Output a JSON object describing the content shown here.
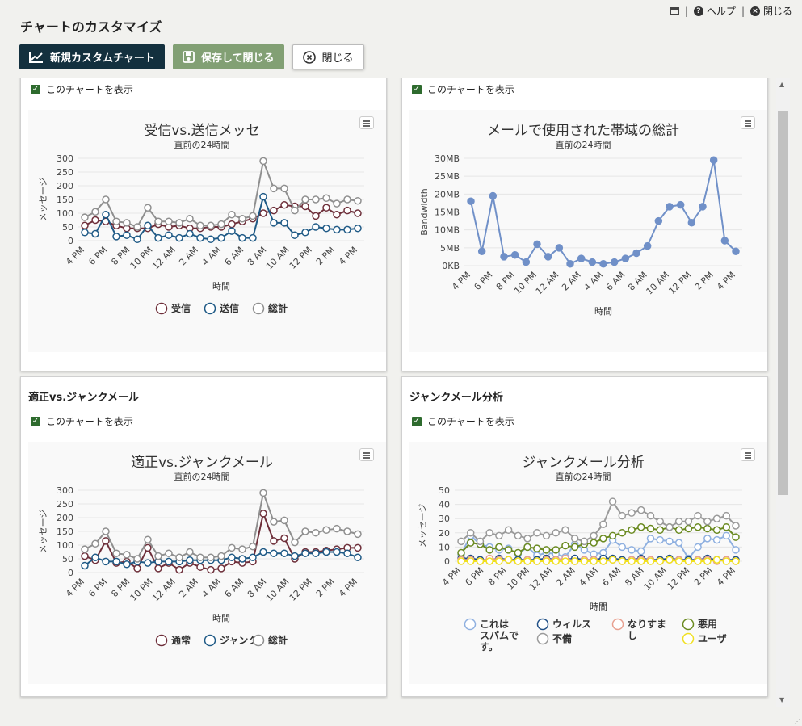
{
  "page": {
    "title": "チャートのカスタマイズ"
  },
  "top_links": {
    "help": "ヘルプ",
    "close": "閉じる",
    "sep": "|"
  },
  "toolbar": {
    "new_chart": "新規カスタムチャート",
    "save_close": "保存して閉じる",
    "close": "閉じる"
  },
  "x_ticks": [
    "4 PM",
    "6 PM",
    "8 PM",
    "10 PM",
    "12 AM",
    "2 AM",
    "4 AM",
    "6 AM",
    "8 AM",
    "10 AM",
    "12 PM",
    "2 PM",
    "4 PM"
  ],
  "charts": [
    {
      "card_title": "",
      "show_label": "このチャートを表示",
      "chart_data": {
        "type": "line",
        "title": "受信vs.送信メッセ",
        "subtitle": "直前の24時間",
        "xlabel": "時間",
        "ylabel": "メッセージ",
        "ylim": [
          0,
          300
        ],
        "yticks": [
          "0",
          "50",
          "100",
          "150",
          "200",
          "250",
          "300"
        ],
        "legend": "bottom",
        "series": [
          {
            "name": "受信",
            "color": "#6e2f3a",
            "values": [
              55,
              75,
              70,
              55,
              45,
              45,
              45,
              60,
              50,
              55,
              45,
              45,
              50,
              50,
              60,
              70,
              80,
              100,
              110,
              130,
              125,
              125,
              90,
              120,
              95,
              110,
              100
            ]
          },
          {
            "name": "送信",
            "color": "#1f5a86",
            "values": [
              30,
              25,
              95,
              15,
              20,
              5,
              55,
              10,
              20,
              10,
              25,
              10,
              5,
              10,
              35,
              10,
              10,
              160,
              65,
              65,
              20,
              30,
              50,
              45,
              40,
              40,
              45
            ]
          },
          {
            "name": "総計",
            "color": "#8f8f8f",
            "values": [
              85,
              105,
              150,
              70,
              65,
              50,
              120,
              70,
              70,
              65,
              80,
              55,
              55,
              60,
              95,
              80,
              90,
              290,
              190,
              190,
              110,
              150,
              150,
              155,
              135,
              150,
              145
            ]
          }
        ]
      }
    },
    {
      "card_title": "",
      "show_label": "このチャートを表示",
      "chart_data": {
        "type": "line",
        "title": "メールで使用された帯域の総計",
        "subtitle": "直前の24時間",
        "xlabel": "時間",
        "ylabel": "Bandwidth",
        "ylim": [
          0,
          30
        ],
        "yticks": [
          "0KB",
          "5MB",
          "10MB",
          "15MB",
          "20MB",
          "25MB",
          "30MB"
        ],
        "legend": "none",
        "series": [
          {
            "color": "#7090c8",
            "values": [
              18,
              4,
              19.5,
              2.5,
              3,
              1,
              6,
              2.5,
              5,
              0.5,
              2,
              1,
              0.5,
              1,
              2,
              3.5,
              5.5,
              12.5,
              16.5,
              17,
              12,
              16.5,
              29.5,
              7,
              4
            ]
          }
        ]
      }
    },
    {
      "card_title": "適正vs.ジャンクメール",
      "show_label": "このチャートを表示",
      "chart_data": {
        "type": "line",
        "title": "適正vs.ジャンクメール",
        "subtitle": "直前の24時間",
        "xlabel": "時間",
        "ylabel": "メッセージ",
        "ylim": [
          0,
          300
        ],
        "yticks": [
          "0",
          "50",
          "100",
          "150",
          "200",
          "250",
          "300"
        ],
        "legend": "bottom",
        "series": [
          {
            "name": "通常",
            "color": "#6e2f3a",
            "values": [
              60,
              45,
              115,
              35,
              40,
              15,
              90,
              15,
              35,
              10,
              35,
              20,
              10,
              15,
              40,
              35,
              40,
              215,
              115,
              125,
              50,
              75,
              75,
              80,
              85,
              90,
              90
            ]
          },
          {
            "name": "ジャンク",
            "color": "#1f5a86",
            "values": [
              25,
              55,
              40,
              40,
              30,
              40,
              35,
              40,
              40,
              40,
              45,
              45,
              45,
              45,
              55,
              50,
              55,
              75,
              70,
              70,
              60,
              70,
              70,
              75,
              75,
              70,
              55
            ]
          },
          {
            "name": "総計",
            "color": "#8f8f8f",
            "values": [
              85,
              105,
              150,
              70,
              65,
              50,
              120,
              60,
              70,
              55,
              75,
              55,
              55,
              60,
              90,
              85,
              95,
              290,
              185,
              190,
              110,
              150,
              145,
              155,
              160,
              150,
              140
            ]
          }
        ]
      }
    },
    {
      "card_title": "ジャンクメール分析",
      "show_label": "このチャートを表示",
      "chart_data": {
        "type": "line",
        "title": "ジャンクメール分析",
        "subtitle": "直前の24時間",
        "xlabel": "時間",
        "ylabel": "メッセージ",
        "ylim": [
          0,
          50
        ],
        "yticks": [
          "0",
          "10",
          "20",
          "30",
          "40",
          "50"
        ],
        "legend": "bottom",
        "series": [
          {
            "name": "これはスパムです。",
            "color": "#8fb0e0",
            "values": [
              5,
              18,
              12,
              10,
              8,
              9,
              5,
              10,
              4,
              6,
              5,
              3,
              12,
              8,
              5,
              6,
              15,
              10,
              8,
              7,
              16,
              15,
              14,
              13,
              2,
              10,
              16,
              15,
              18,
              8
            ]
          },
          {
            "name": "ウィルス",
            "color": "#1f4f86",
            "values": [
              2,
              2,
              1,
              1,
              2,
              1,
              1,
              1,
              1,
              2,
              1,
              1,
              2,
              1,
              1,
              2,
              2,
              1,
              1,
              2,
              1,
              1,
              2,
              1,
              1,
              1,
              2,
              1,
              1,
              1
            ]
          },
          {
            "name": "なりすまし",
            "color": "#e8a090",
            "values": [
              1,
              1,
              0,
              2,
              1,
              1,
              0,
              1,
              0,
              1,
              1,
              2,
              0,
              1,
              1,
              0,
              1,
              0,
              1,
              1,
              1,
              0,
              1,
              1,
              0,
              1,
              1,
              0,
              1,
              0
            ]
          },
          {
            "name": "悪用",
            "color": "#6a8a20",
            "values": [
              6,
              13,
              12,
              8,
              10,
              8,
              6,
              10,
              9,
              8,
              8,
              11,
              10,
              12,
              13,
              16,
              18,
              20,
              22,
              24,
              23,
              22,
              24,
              22,
              23,
              24,
              23,
              22,
              24,
              17
            ]
          },
          {
            "name": "不備",
            "color": "#9a9a9a",
            "values": [
              14,
              20,
              14,
              20,
              18,
              22,
              18,
              16,
              20,
              18,
              20,
              22,
              16,
              14,
              18,
              26,
              42,
              32,
              34,
              36,
              32,
              28,
              24,
              28,
              28,
              32,
              28,
              30,
              32,
              25
            ]
          },
          {
            "name": "ユーザ",
            "color": "#f0e020",
            "values": [
              0,
              0,
              0,
              0,
              0,
              1,
              0,
              0,
              0,
              0,
              0,
              0,
              0,
              0,
              0,
              0,
              1,
              0,
              0,
              0,
              0,
              0,
              1,
              0,
              0,
              0,
              0,
              1,
              0,
              0
            ]
          }
        ]
      }
    }
  ]
}
